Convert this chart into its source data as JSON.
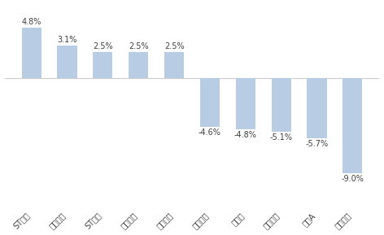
{
  "categories": [
    "ST加加",
    "日榨股份",
    "ST春天",
    "庄园牧场",
    "燕塘乳业",
    "美鑫股份",
    "金徽山",
    "涌陵榨菜",
    "保佳A",
    "今传酒业"
  ],
  "values": [
    4.8,
    3.1,
    2.5,
    2.5,
    2.5,
    -4.6,
    -4.8,
    -5.1,
    -5.7,
    -9.0
  ],
  "bar_color": "#b8cce4",
  "background_color": "#ffffff",
  "ylim_min": -12,
  "ylim_max": 7,
  "label_fontsize": 7,
  "tick_fontsize": 7,
  "label_color": "#404040",
  "zero_line_color": "#cccccc",
  "bar_width": 0.55
}
